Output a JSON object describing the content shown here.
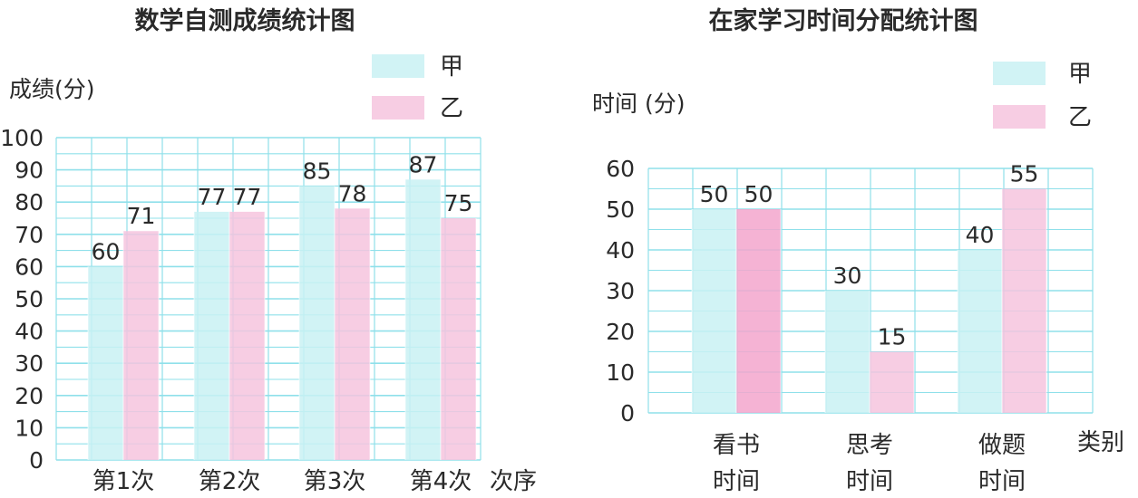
{
  "chart_data": [
    {
      "type": "bar",
      "title": "数学自测成绩统计图",
      "ylabel": "成绩(分)",
      "xlabel": "次序",
      "categories": [
        "第1次",
        "第2次",
        "第3次",
        "第4次"
      ],
      "series": [
        {
          "name": "甲",
          "values": [
            60,
            77,
            85,
            87
          ],
          "color": "#c9f1f3"
        },
        {
          "name": "乙",
          "values": [
            71,
            77,
            78,
            75
          ],
          "color": "#f6c4de"
        }
      ],
      "ylim": [
        0,
        100
      ],
      "yticks": [
        "0",
        "10",
        "20",
        "30",
        "40",
        "50",
        "60",
        "70",
        "80",
        "90",
        "100"
      ],
      "grid": true,
      "legend": "top-right"
    },
    {
      "type": "bar",
      "title": "在家学习时间分配统计图",
      "ylabel": "时间 (分)",
      "xlabel": "类别",
      "categories": [
        "看书\n时间",
        "思考\n时间",
        "做题\n时间"
      ],
      "series": [
        {
          "name": "甲",
          "values": [
            50,
            30,
            40
          ],
          "color": "#c9f1f3"
        },
        {
          "name": "乙",
          "values": [
            50,
            15,
            55
          ],
          "color": "#f6c4de"
        }
      ],
      "ylim": [
        0,
        60
      ],
      "yticks": [
        "0",
        "10",
        "20",
        "30",
        "40",
        "50",
        "60"
      ],
      "grid": true,
      "legend": "top-right"
    }
  ],
  "colors": {
    "grid": "#8fe0ea",
    "seriesA": "#c9f1f3",
    "seriesB": "#f6c4de",
    "seriesBStrong": "#f3a6cc"
  }
}
